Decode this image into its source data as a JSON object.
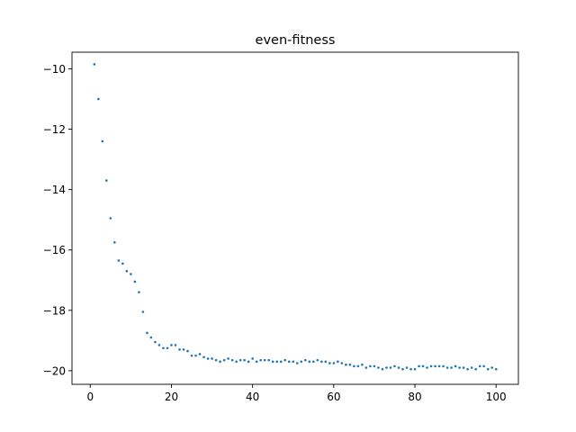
{
  "chart_data": {
    "type": "scatter",
    "title": "even-fitness",
    "xlabel": "",
    "ylabel": "",
    "xlim": [
      -4.5,
      105.5
    ],
    "ylim": [
      -20.45,
      -9.45
    ],
    "xticks": [
      0,
      20,
      40,
      60,
      80,
      100
    ],
    "yticks": [
      -20,
      -18,
      -16,
      -14,
      -12,
      -10
    ],
    "xtick_labels": [
      "0",
      "20",
      "40",
      "60",
      "80",
      "100"
    ],
    "ytick_labels": [
      "−20",
      "−18",
      "−16",
      "−14",
      "−12",
      "−10"
    ],
    "grid": false,
    "marker_color": "#1f77b4",
    "series": [
      {
        "x": [
          1,
          2,
          3,
          4,
          5,
          6,
          7,
          8,
          9,
          10,
          11,
          12,
          13,
          14,
          15,
          16,
          17,
          18,
          19,
          20,
          21,
          22,
          23,
          24,
          25,
          26,
          27,
          28,
          29,
          30,
          31,
          32,
          33,
          34,
          35,
          36,
          37,
          38,
          39,
          40,
          41,
          42,
          43,
          44,
          45,
          46,
          47,
          48,
          49,
          50,
          51,
          52,
          53,
          54,
          55,
          56,
          57,
          58,
          59,
          60,
          61,
          62,
          63,
          64,
          65,
          66,
          67,
          68,
          69,
          70,
          71,
          72,
          73,
          74,
          75,
          76,
          77,
          78,
          79,
          80,
          81,
          82,
          83,
          84,
          85,
          86,
          87,
          88,
          89,
          90,
          91,
          92,
          93,
          94,
          95,
          96,
          97,
          98,
          99,
          100
        ],
        "y": [
          -9.85,
          -11.0,
          -12.4,
          -13.7,
          -14.95,
          -15.75,
          -16.35,
          -16.45,
          -16.7,
          -16.8,
          -17.05,
          -17.4,
          -18.05,
          -18.75,
          -18.9,
          -19.05,
          -19.15,
          -19.25,
          -19.25,
          -19.15,
          -19.15,
          -19.3,
          -19.3,
          -19.35,
          -19.5,
          -19.5,
          -19.45,
          -19.55,
          -19.6,
          -19.6,
          -19.65,
          -19.7,
          -19.65,
          -19.6,
          -19.65,
          -19.7,
          -19.65,
          -19.65,
          -19.7,
          -19.6,
          -19.7,
          -19.65,
          -19.65,
          -19.65,
          -19.7,
          -19.7,
          -19.7,
          -19.65,
          -19.7,
          -19.7,
          -19.75,
          -19.7,
          -19.65,
          -19.7,
          -19.7,
          -19.65,
          -19.7,
          -19.7,
          -19.75,
          -19.75,
          -19.7,
          -19.75,
          -19.8,
          -19.8,
          -19.85,
          -19.85,
          -19.8,
          -19.9,
          -19.85,
          -19.85,
          -19.9,
          -19.95,
          -19.9,
          -19.9,
          -19.85,
          -19.9,
          -19.95,
          -19.9,
          -19.95,
          -19.95,
          -19.85,
          -19.85,
          -19.9,
          -19.85,
          -19.85,
          -19.85,
          -19.85,
          -19.9,
          -19.9,
          -19.85,
          -19.9,
          -19.9,
          -19.95,
          -19.9,
          -19.95,
          -19.85,
          -19.85,
          -19.95,
          -19.9,
          -19.95
        ]
      }
    ]
  }
}
